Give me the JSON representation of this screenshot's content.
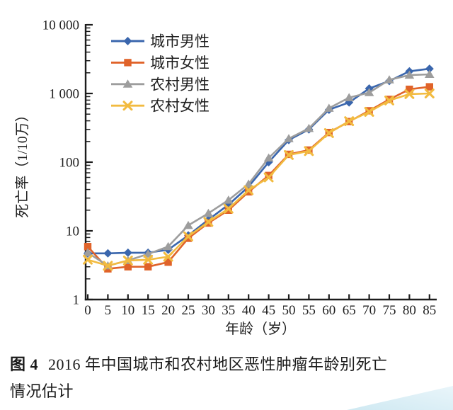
{
  "figure": {
    "caption_prefix": "图 4",
    "caption_line1": "2016 年中国城市和农村地区恶性肿瘤年龄别死亡",
    "caption_line2": "情况估计"
  },
  "chart_data": {
    "type": "line",
    "title": "",
    "xlabel": "年龄（岁）",
    "ylabel": "死亡率（1/10万）",
    "x_axis": {
      "ticks": [
        0,
        5,
        10,
        15,
        20,
        25,
        30,
        35,
        40,
        45,
        50,
        55,
        60,
        65,
        70,
        75,
        80,
        85
      ]
    },
    "y_axis": {
      "scale": "log",
      "lim": [
        1,
        10000
      ],
      "tick_labels": [
        "1",
        "10",
        "100",
        "1 000",
        "10 000"
      ]
    },
    "grid": false,
    "legend_position": "upper left inside",
    "ages": [
      0,
      5,
      10,
      15,
      20,
      25,
      30,
      35,
      40,
      45,
      50,
      55,
      60,
      65,
      70,
      75,
      80,
      85
    ],
    "series": [
      {
        "key": "urban-male",
        "name": "城市男性",
        "color": "#3a66ad",
        "marker": "diamond",
        "values": [
          4.7,
          4.7,
          4.8,
          4.8,
          5.3,
          8.6,
          14.5,
          24,
          44,
          100,
          210,
          300,
          580,
          740,
          1180,
          1520,
          2100,
          2290
        ]
      },
      {
        "key": "urban-female",
        "name": "城市女性",
        "color": "#e0632a",
        "marker": "square",
        "values": [
          5.9,
          2.8,
          3.0,
          3.0,
          3.5,
          7.8,
          13.0,
          20,
          37,
          64,
          130,
          150,
          270,
          390,
          560,
          820,
          1150,
          1250
        ]
      },
      {
        "key": "rural-male",
        "name": "农村男性",
        "color": "#9d9d9d",
        "marker": "triangle",
        "values": [
          4.8,
          3.1,
          3.7,
          4.6,
          5.9,
          12.0,
          18.0,
          28,
          48,
          115,
          220,
          310,
          610,
          870,
          1030,
          1580,
          1850,
          1900
        ]
      },
      {
        "key": "rural-female",
        "name": "农村女性",
        "color": "#f2bb40",
        "marker": "x",
        "values": [
          3.8,
          3.1,
          3.7,
          3.8,
          4.2,
          8.3,
          13.5,
          21,
          39,
          60,
          127,
          145,
          265,
          395,
          540,
          790,
          980,
          1000
        ]
      }
    ],
    "axis_color": "#1c1c1c",
    "text_color": "#1f1f1f"
  },
  "decor": {
    "corner_color": "#cfe9f2"
  }
}
